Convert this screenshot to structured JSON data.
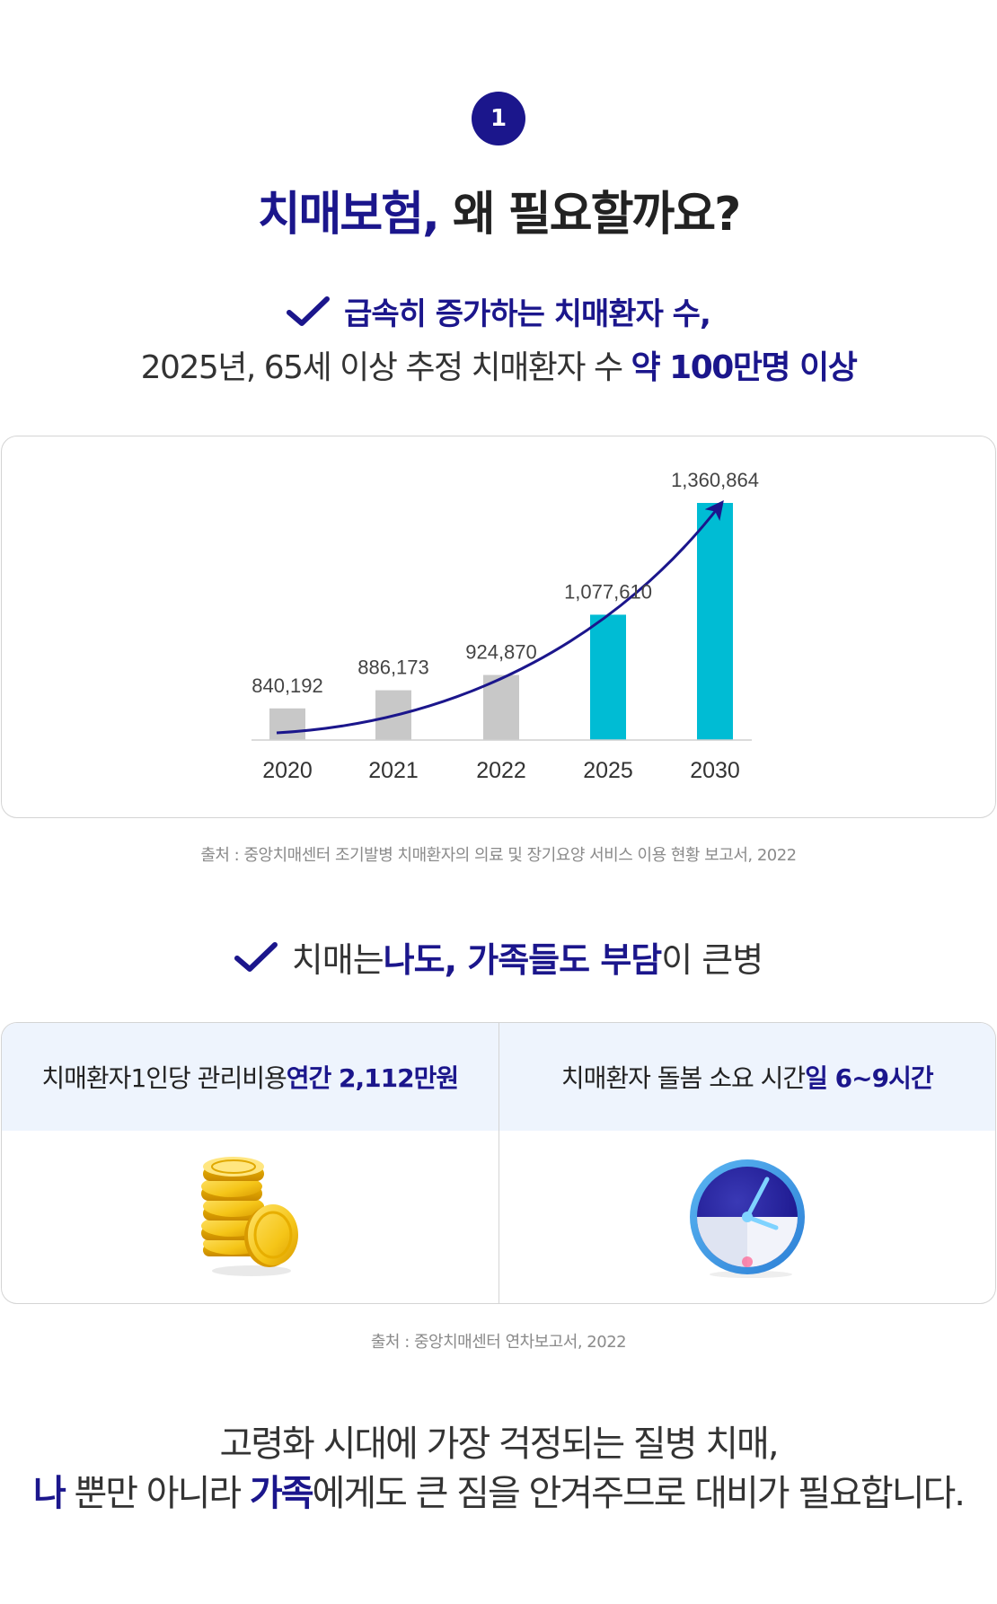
{
  "step": {
    "number": "1"
  },
  "title": {
    "accent": "치매보험,",
    "rest": " 왜 필요할까요?"
  },
  "point1": {
    "headline": "급속히 증가하는 치매환자 수,",
    "sub_prefix": "2025년, 65세 이상 추정 치매환자 수 ",
    "sub_accent": "약 100만명 이상"
  },
  "chart_data": {
    "type": "bar",
    "categories": [
      "2020",
      "2021",
      "2022",
      "2025",
      "2030"
    ],
    "values": [
      840192,
      886173,
      924870,
      1077610,
      1360864
    ],
    "data_labels": [
      "840,192",
      "886,173",
      "924,870",
      "1,077,610",
      "1,360,864"
    ],
    "highlight": [
      false,
      false,
      false,
      true,
      true
    ],
    "colors": {
      "base": "#c8c8c8",
      "highlight": "#00bcd4",
      "trend_arrow": "#1b168c"
    },
    "xlabel": "",
    "ylabel": "",
    "grid": false,
    "trend_arrow": true
  },
  "source1": "출처 : 중앙치매센터 조기발병 치매환자의 의료 및 장기요양 서비스 이용 현황 보고서, 2022",
  "point2": {
    "prefix": "치매는 ",
    "accent1": "나도, 가족들도 부담",
    "suffix": "이 큰병"
  },
  "stats": [
    {
      "prefix": "치매환자1인당 관리비용 ",
      "accent": "연간 2,112만원",
      "icon": "gold-coins-icon"
    },
    {
      "prefix": "치매환자 돌봄 소요 시간 ",
      "accent": "일 6~9시간",
      "icon": "clock-icon"
    }
  ],
  "source2": "출처 : 중앙치매센터 연차보고서, 2022",
  "closing": {
    "line1": "고령화 시대에 가장 걱정되는 질병 치매,",
    "line2_accent1": "나",
    "line2_mid": " 뿐만 아니라 ",
    "line2_accent2": "가족",
    "line2_end": "에게도 큰 짐을 안겨주므로 대비가 필요합니다."
  },
  "colors": {
    "brand": "#1b168c",
    "accent": "#00bcd4",
    "panel": "#eef4fd"
  }
}
